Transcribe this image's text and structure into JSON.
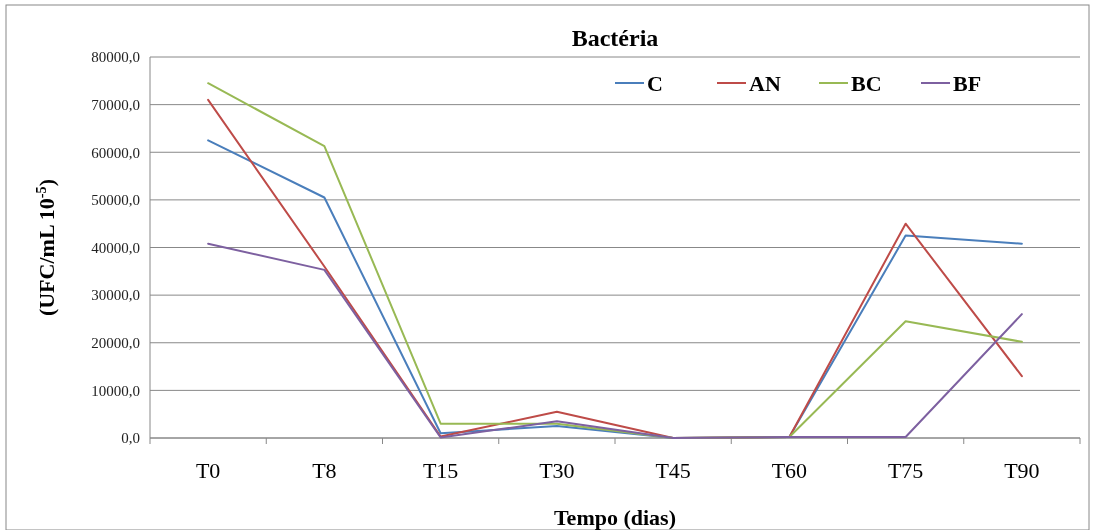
{
  "chart_data": {
    "type": "line",
    "title": "Bactéria",
    "xlabel": "Tempo (dias)",
    "ylabel": "(UFC/mL 10$^{-5}$)",
    "categories": [
      "T0",
      "T8",
      "T15",
      "T30",
      "T45",
      "T60",
      "T75",
      "T90"
    ],
    "series": [
      {
        "name": "C",
        "color": "#4a7ebb",
        "values": [
          62500,
          50500,
          1000,
          2500,
          0,
          200,
          42500,
          40800
        ]
      },
      {
        "name": "AN",
        "color": "#be4b48",
        "values": [
          71000,
          36000,
          300,
          5500,
          0,
          200,
          45000,
          13000
        ]
      },
      {
        "name": "BC",
        "color": "#98b954",
        "values": [
          74500,
          61300,
          3000,
          3000,
          0,
          200,
          24500,
          20200
        ]
      },
      {
        "name": "BF",
        "color": "#7d60a0",
        "values": [
          40800,
          35300,
          100,
          3500,
          0,
          200,
          200,
          26000
        ]
      }
    ],
    "ylim": [
      0,
      80000
    ],
    "yticks": [
      {
        "value": 0,
        "label": "0,0"
      },
      {
        "value": 10000,
        "label": "10000,0"
      },
      {
        "value": 20000,
        "label": "20000,0"
      },
      {
        "value": 30000,
        "label": "30000,0"
      },
      {
        "value": 40000,
        "label": "40000,0"
      },
      {
        "value": 50000,
        "label": "50000,0"
      },
      {
        "value": 60000,
        "label": "60000,0"
      },
      {
        "value": 70000,
        "label": "70000,0"
      },
      {
        "value": 80000,
        "label": "80000,0"
      }
    ],
    "grid": "y",
    "legend": "top right",
    "marker": "none",
    "line_style": "solid"
  }
}
